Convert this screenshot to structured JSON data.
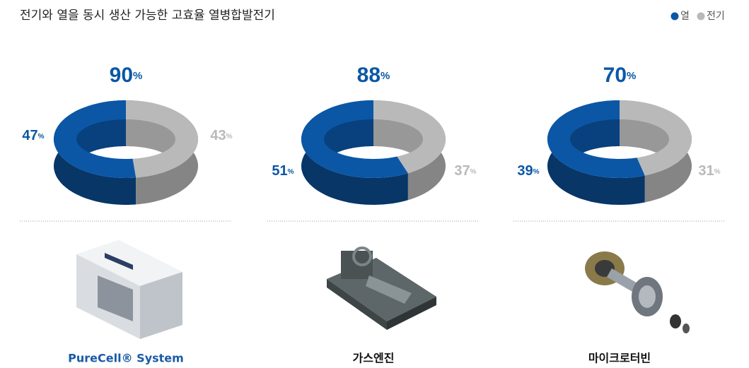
{
  "title": "전기와 열을 동시 생산 가능한 고효율 열병합발전기",
  "unit": "%",
  "legend": [
    {
      "name": "열",
      "color": "#0b57a6"
    },
    {
      "name": "전기",
      "color": "#b9b9b9"
    }
  ],
  "chart_data": [
    {
      "type": "donut",
      "total": 90,
      "values": [
        47,
        43
      ],
      "label": "PureCell® System",
      "label_color": "#1a5aa6"
    },
    {
      "type": "donut",
      "total": 88,
      "values": [
        51,
        37
      ],
      "label": "가스엔진",
      "label_color": "#111111"
    },
    {
      "type": "donut",
      "total": 70,
      "values": [
        39,
        31
      ],
      "label": "마이크로터빈",
      "label_color": "#111111"
    }
  ]
}
